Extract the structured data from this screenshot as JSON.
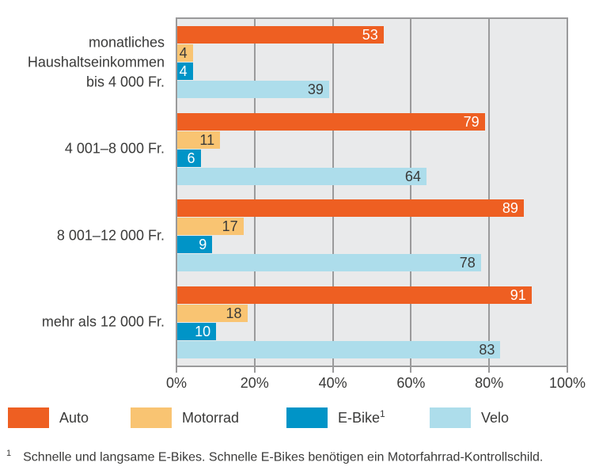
{
  "chart_data": {
    "type": "bar",
    "orientation": "horizontal",
    "title": "",
    "xlabel": "",
    "ylabel": "",
    "xlim": [
      0,
      100
    ],
    "grid": "vertical",
    "legend_position": "bottom",
    "categories": [
      {
        "lines": [
          "monatliches",
          "Haushaltseinkommen",
          "bis 4 000 Fr."
        ]
      },
      {
        "lines": [
          "4 001–8 000 Fr."
        ]
      },
      {
        "lines": [
          "8 001–12 000 Fr."
        ]
      },
      {
        "lines": [
          "mehr als 12 000 Fr."
        ]
      }
    ],
    "series": [
      {
        "name": "Auto",
        "color": "#EE5F22",
        "value_color": "#FFFFFF",
        "values": [
          53,
          79,
          89,
          91
        ]
      },
      {
        "name": "Motorrad",
        "color": "#F9C472",
        "value_color": "#3A3A39",
        "values": [
          4,
          11,
          17,
          18
        ]
      },
      {
        "name": "E-Bike",
        "sup": "1",
        "color": "#0094C7",
        "value_color": "#FFFFFF",
        "values": [
          4,
          6,
          9,
          10
        ]
      },
      {
        "name": "Velo",
        "color": "#ADDDEB",
        "value_color": "#3A3A39",
        "values": [
          39,
          64,
          78,
          83
        ]
      }
    ],
    "x_ticks": [
      {
        "pos": 0,
        "label": "0%"
      },
      {
        "pos": 20,
        "label": "20%"
      },
      {
        "pos": 40,
        "label": "40%"
      },
      {
        "pos": 60,
        "label": "60%"
      },
      {
        "pos": 80,
        "label": "80%"
      },
      {
        "pos": 100,
        "label": "100%"
      }
    ],
    "footnote_marker": "1",
    "footnote": "Schnelle und langsame E-Bikes. Schnelle E-Bikes benötigen ein Motorfahrrad-Kontrollschild."
  },
  "style_colors": {
    "plot_background": "#E9EAEB",
    "grid": "#9A9A9B",
    "text": "#3A3A39"
  }
}
